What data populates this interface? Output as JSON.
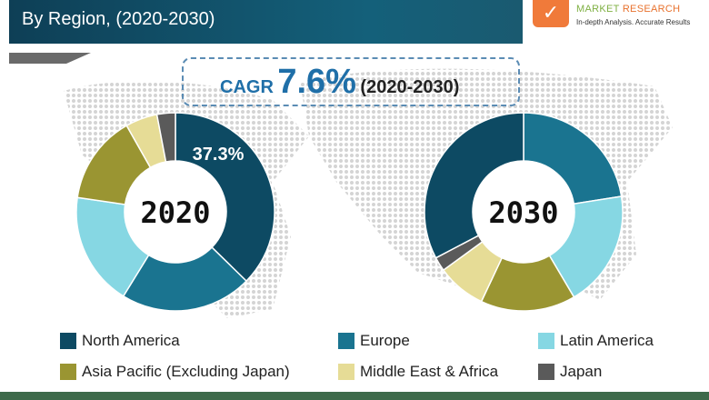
{
  "header": {
    "subtitle": "By Region, (2020-2030)"
  },
  "logo": {
    "line1a": "MARKET",
    "line1b": "RESEARCH",
    "tagline": "In-depth Analysis. Accurate Results"
  },
  "cagr": {
    "label": "CAGR",
    "value": "7.6%",
    "period": "(2020-2030)"
  },
  "chart_data": [
    {
      "type": "pie",
      "variant": "donut",
      "title": "2020",
      "start": "North America",
      "categories": [
        "North America",
        "Europe",
        "Latin America",
        "Asia Pacific (Excluding Japan)",
        "Middle East & Africa",
        "Japan"
      ],
      "values": [
        37.3,
        21.5,
        18.5,
        14.5,
        5.2,
        3.0
      ],
      "data_labels": {
        "North America": "37.3%"
      }
    },
    {
      "type": "pie",
      "variant": "donut",
      "title": "2030",
      "start": "Europe",
      "categories": [
        "Europe",
        "Latin America",
        "Asia Pacific (Excluding Japan)",
        "Middle East & Africa",
        "Japan",
        "North America"
      ],
      "values": [
        22.5,
        19.0,
        15.5,
        8.0,
        2.3,
        32.7
      ]
    }
  ],
  "legend": [
    {
      "label": "North America",
      "color": "#0d4a63"
    },
    {
      "label": "Europe",
      "color": "#1a7490"
    },
    {
      "label": "Latin America",
      "color": "#86d7e3"
    },
    {
      "label": "Asia Pacific (Excluding Japan)",
      "color": "#9a9532"
    },
    {
      "label": "Middle East & Africa",
      "color": "#e6dc96"
    },
    {
      "label": "Japan",
      "color": "#5a5a5a"
    }
  ],
  "chart_labels": {
    "label_2020": "37.3%"
  }
}
